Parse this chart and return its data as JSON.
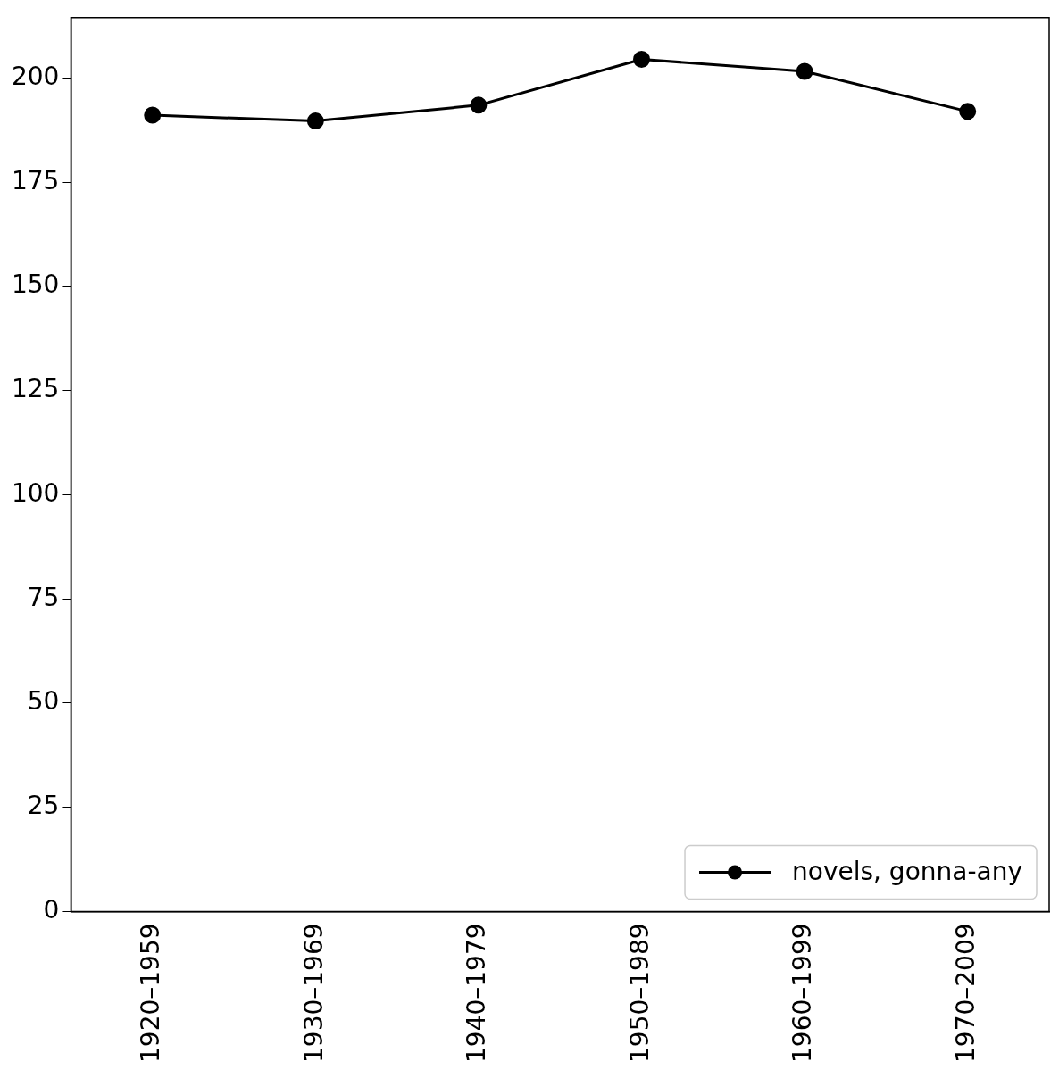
{
  "chart_data": {
    "type": "line",
    "categories": [
      "1920–1959",
      "1930–1969",
      "1940–1979",
      "1950–1989",
      "1960–1999",
      "1970–2009"
    ],
    "series": [
      {
        "name": "novels, gonna-any",
        "color": "#000000",
        "values": [
          191.1,
          189.7,
          193.5,
          204.5,
          201.6,
          192.0
        ]
      }
    ],
    "ylim": [
      0,
      214.5
    ],
    "yticks": [
      0,
      25,
      50,
      75,
      100,
      125,
      150,
      175,
      200
    ],
    "grid": false,
    "legend": "bottom right",
    "marker": "circle",
    "line_style": "solid"
  }
}
